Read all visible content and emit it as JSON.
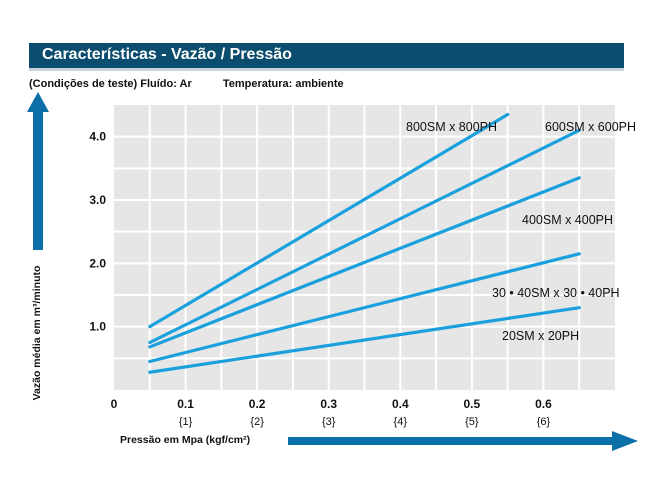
{
  "header": {
    "title": "Características - Vazão / Pressão"
  },
  "conditions": {
    "fluid": "(Condições de teste) Fluído: Ar",
    "temperature": "Temperatura: ambiente"
  },
  "colors": {
    "title_bar": "#0b4d6e",
    "series_line": "#1aa0dc",
    "arrow": "#0b6fa8",
    "grid_bg": "#e6e6e6",
    "grid_line": "#ffffff"
  },
  "chart_data": {
    "type": "line",
    "title": "",
    "xlabel": "Pressão em Mpa (kgf/cm²)",
    "ylabel": "Vazão média em m³/minuto",
    "xlim": [
      0,
      0.7
    ],
    "ylim": [
      0,
      4.5
    ],
    "x_ticks": [
      "0",
      "0.1",
      "0.2",
      "0.3",
      "0.4",
      "0.5",
      "0.6"
    ],
    "x_ticks_secondary": [
      "{1}",
      "{2}",
      "{3}",
      "{4}",
      "{5}",
      "{6}"
    ],
    "y_ticks": [
      "1.0",
      "2.0",
      "3.0",
      "4.0"
    ],
    "grid": true,
    "series": [
      {
        "name": "800SM x 800PH",
        "x": [
          0.05,
          0.55
        ],
        "y": [
          1.0,
          4.35
        ]
      },
      {
        "name": "600SM x 600PH",
        "x": [
          0.05,
          0.65
        ],
        "y": [
          0.75,
          4.1
        ]
      },
      {
        "name": "400SM x 400PH",
        "x": [
          0.05,
          0.65
        ],
        "y": [
          0.68,
          3.35
        ]
      },
      {
        "name": "30 • 40SM x 30 • 40PH",
        "x": [
          0.05,
          0.65
        ],
        "y": [
          0.45,
          2.15
        ]
      },
      {
        "name": "20SM x 20PH",
        "x": [
          0.05,
          0.65
        ],
        "y": [
          0.28,
          1.3
        ]
      }
    ]
  }
}
